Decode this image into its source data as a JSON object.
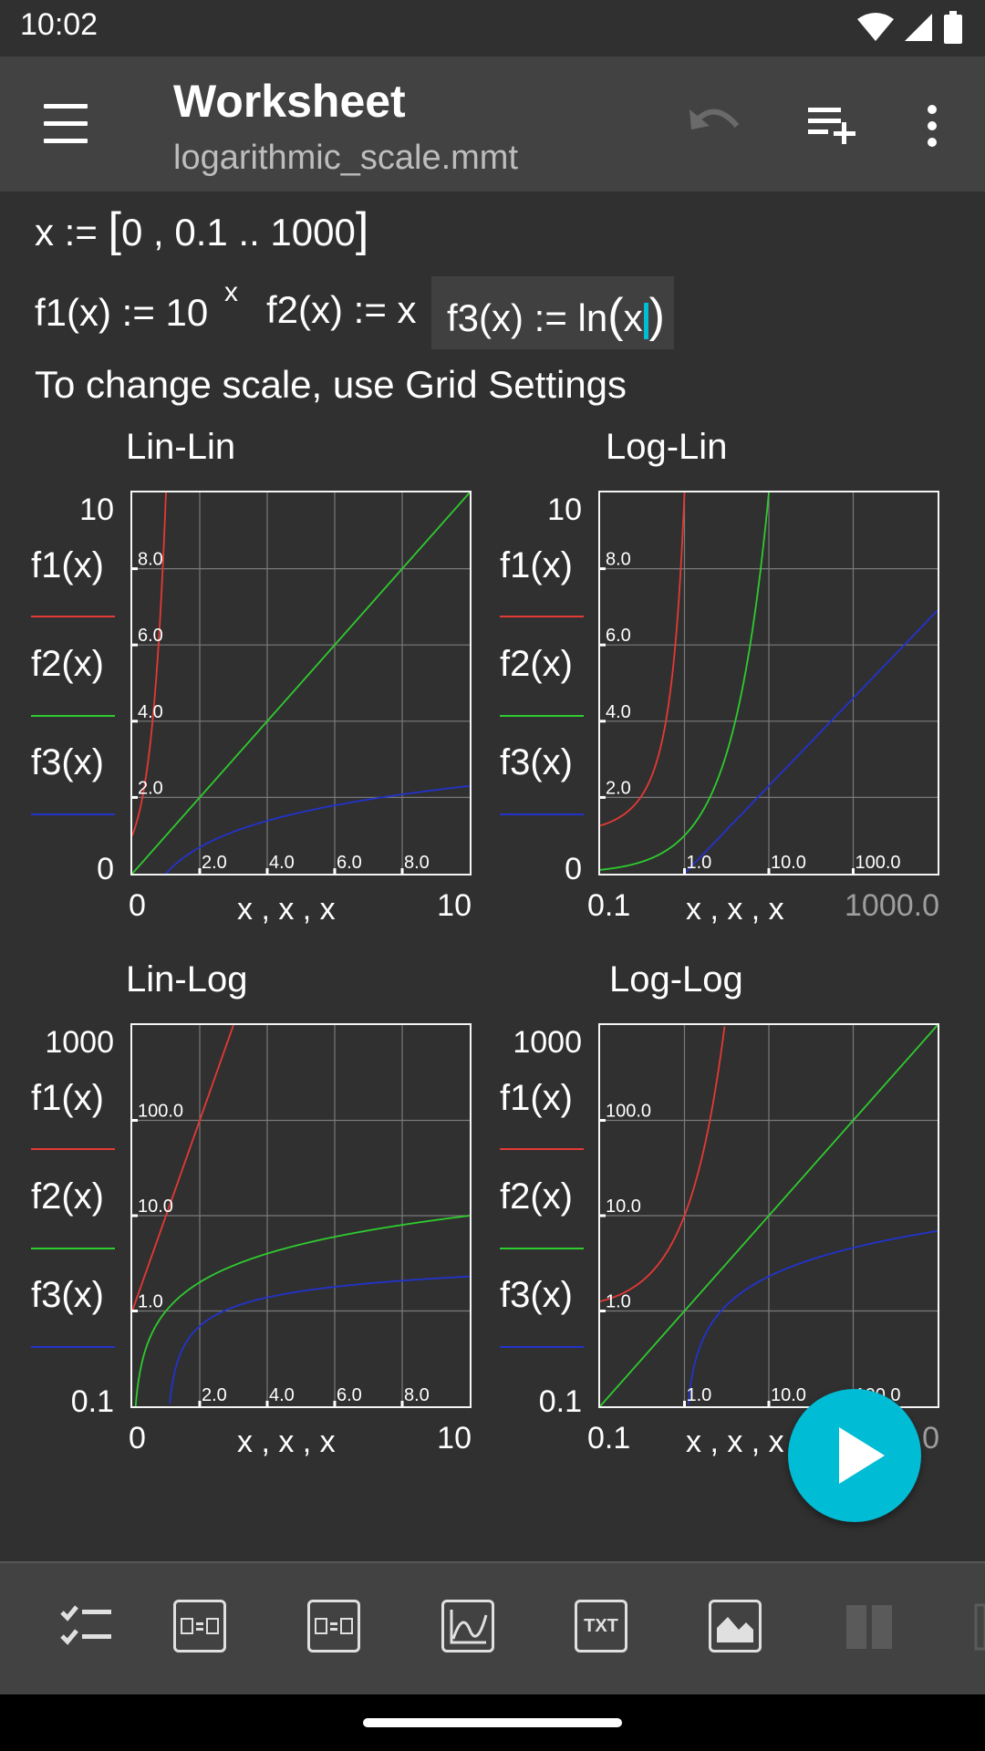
{
  "status": {
    "time": "10:02"
  },
  "appbar": {
    "title": "Worksheet",
    "subtitle": "logarithmic_scale.mmt"
  },
  "formulas": {
    "line1": {
      "name": "x",
      "assign": ":=",
      "lbracket": "[",
      "content": "0 , 0.1 .. 1000",
      "rbracket": "]"
    },
    "line2": {
      "f1_lhs": "f1(x) := 10",
      "f1_exp": "x",
      "f2": "f2(x) := x",
      "f3_lhs": "f3(x) := ln",
      "f3_lparen": "(",
      "f3_arg": "x",
      "f3_rparen": ")"
    },
    "note": "To change scale, use Grid Settings"
  },
  "colors": {
    "f1": "#e53935",
    "f2": "#2ecc2e",
    "f3": "#2233cc",
    "accent": "#00bcd4"
  },
  "legend": {
    "f1": "f1(x)",
    "f2": "f2(x)",
    "f3": "f3(x)"
  },
  "plots": [
    {
      "title": "Lin-Lin",
      "xscale": "lin",
      "yscale": "lin",
      "xmin_label": "0",
      "xmax_label": "10",
      "ymin_label": "0",
      "ymax_label": "10",
      "xlabel": "x , x , x",
      "xticks": [
        "2.0",
        "4.0",
        "6.0",
        "8.0"
      ],
      "yticks": [
        "2.0",
        "4.0",
        "6.0",
        "8.0"
      ]
    },
    {
      "title": "Log-Lin",
      "xscale": "log",
      "yscale": "lin",
      "xmin_label": "0.1",
      "xmax_label": "1000.0",
      "ymin_label": "0",
      "ymax_label": "10",
      "xlabel": "x , x , x",
      "xticks": [
        "1.0",
        "10.0",
        "100.0"
      ],
      "yticks": [
        "2.0",
        "4.0",
        "6.0",
        "8.0"
      ]
    },
    {
      "title": "Lin-Log",
      "xscale": "lin",
      "yscale": "log",
      "xmin_label": "0",
      "xmax_label": "10",
      "ymin_label": "0.1",
      "ymax_label": "1000",
      "xlabel": "x , x , x",
      "xticks": [
        "2.0",
        "4.0",
        "6.0",
        "8.0"
      ],
      "yticks": [
        "1.0",
        "10.0",
        "100.0"
      ]
    },
    {
      "title": "Log-Log",
      "xscale": "log",
      "yscale": "log",
      "xmin_label": "0.1",
      "xmax_label": "1000.0",
      "ymin_label": "0.1",
      "ymax_label": "1000",
      "xlabel": "x , x , x",
      "xticks": [
        "1.0",
        "10.0",
        "100.0"
      ],
      "yticks": [
        "1.0",
        "10.0",
        "100.0"
      ]
    }
  ],
  "chart_data": [
    {
      "type": "line",
      "title": "Lin-Lin",
      "xlim": [
        0,
        10
      ],
      "ylim": [
        0,
        10
      ],
      "xscale": "linear",
      "yscale": "linear",
      "series": [
        {
          "name": "f1(x)",
          "formula": "10^x"
        },
        {
          "name": "f2(x)",
          "formula": "x"
        },
        {
          "name": "f3(x)",
          "formula": "ln(x)"
        }
      ]
    },
    {
      "type": "line",
      "title": "Log-Lin",
      "xlim": [
        0.1,
        1000
      ],
      "ylim": [
        0,
        10
      ],
      "xscale": "log",
      "yscale": "linear",
      "series": [
        {
          "name": "f1(x)",
          "formula": "10^x"
        },
        {
          "name": "f2(x)",
          "formula": "x"
        },
        {
          "name": "f3(x)",
          "formula": "ln(x)"
        }
      ]
    },
    {
      "type": "line",
      "title": "Lin-Log",
      "xlim": [
        0,
        10
      ],
      "ylim": [
        0.1,
        1000
      ],
      "xscale": "linear",
      "yscale": "log",
      "series": [
        {
          "name": "f1(x)",
          "formula": "10^x"
        },
        {
          "name": "f2(x)",
          "formula": "x"
        },
        {
          "name": "f3(x)",
          "formula": "ln(x)"
        }
      ]
    },
    {
      "type": "line",
      "title": "Log-Log",
      "xlim": [
        0.1,
        1000
      ],
      "ylim": [
        0.1,
        1000
      ],
      "xscale": "log",
      "yscale": "log",
      "series": [
        {
          "name": "f1(x)",
          "formula": "10^x"
        },
        {
          "name": "f2(x)",
          "formula": "x"
        },
        {
          "name": "f3(x)",
          "formula": "ln(x)"
        }
      ]
    }
  ],
  "toolbar": {
    "txt_label": "TXT"
  }
}
